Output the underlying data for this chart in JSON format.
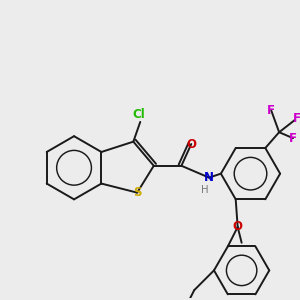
{
  "bg_color": "#ececec",
  "line_color": "#1a1a1a",
  "lw": 1.4,
  "figsize": [
    3.0,
    3.0
  ],
  "dpi": 100,
  "colors": {
    "Cl": "#22bb00",
    "S": "#ccaa00",
    "O": "#cc0000",
    "N": "#0000cc",
    "H": "#777777",
    "F": "#cc00cc",
    "C": "#1a1a1a"
  },
  "font": 8.5
}
